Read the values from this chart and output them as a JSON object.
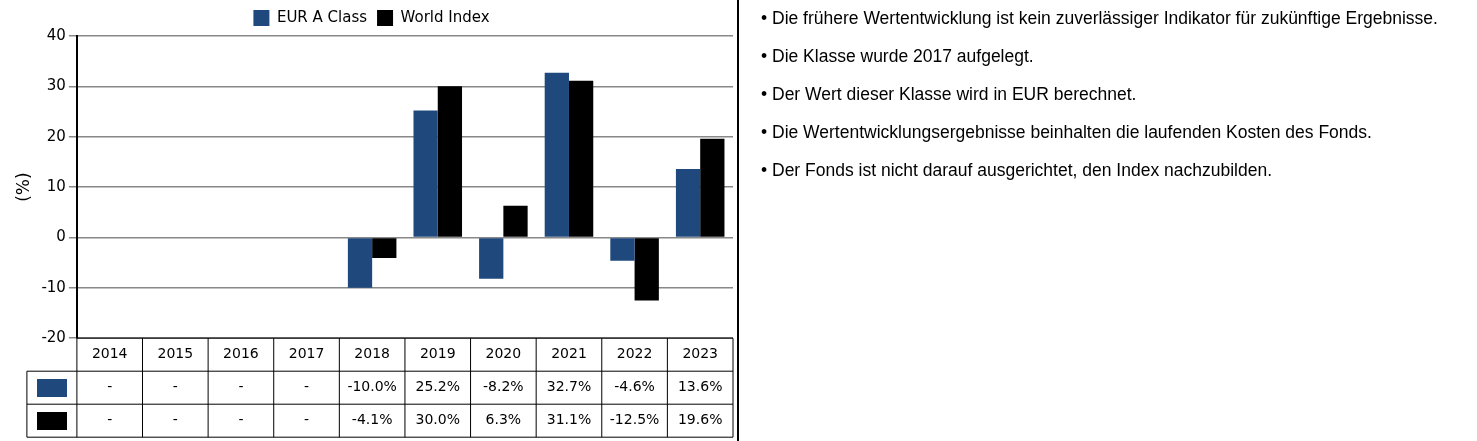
{
  "chart_data": {
    "type": "bar",
    "ylabel": "(%)",
    "categories": [
      "2014",
      "2015",
      "2016",
      "2017",
      "2018",
      "2019",
      "2020",
      "2021",
      "2022",
      "2023"
    ],
    "series": [
      {
        "name": "EUR A Class",
        "color": "#1f497d",
        "values": [
          null,
          null,
          null,
          null,
          -10.0,
          25.2,
          -8.2,
          32.7,
          -4.6,
          13.6
        ],
        "value_labels": [
          "-",
          "-",
          "-",
          "-",
          "-10.0%",
          "25.2%",
          "-8.2%",
          "32.7%",
          "-4.6%",
          "13.6%"
        ]
      },
      {
        "name": "World Index",
        "color": "#000000",
        "values": [
          null,
          null,
          null,
          null,
          -4.1,
          30.0,
          6.3,
          31.1,
          -12.5,
          19.6
        ],
        "value_labels": [
          "-",
          "-",
          "-",
          "-",
          "-4.1%",
          "30.0%",
          "6.3%",
          "31.1%",
          "-12.5%",
          "19.6%"
        ]
      }
    ],
    "ylim": [
      -20,
      40
    ],
    "yticks": [
      -20,
      -10,
      0,
      10,
      20,
      30,
      40
    ],
    "grid": "y",
    "legend": "top",
    "annotations": [
      "• Die frühere Wertentwicklung ist kein zuverlässiger Indikator für zukünftige Ergebnisse.",
      "• Die Klasse wurde 2017 aufgelegt.",
      "• Der Wert dieser Klasse wird in EUR berechnet.",
      "• Die Wertentwicklungsergebnisse beinhalten die laufenden Kosten des Fonds.",
      "• Der Fonds ist nicht darauf ausgerichtet, den Index nachzubilden."
    ]
  }
}
